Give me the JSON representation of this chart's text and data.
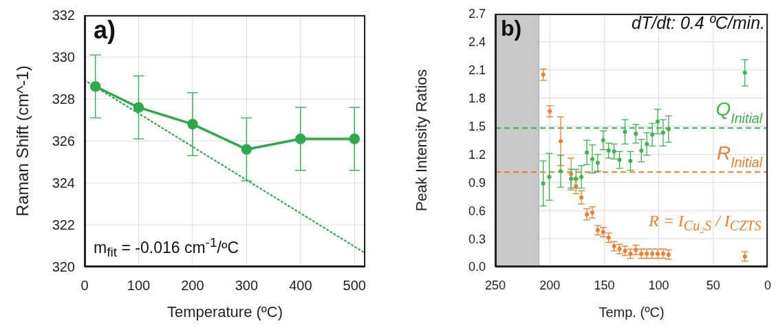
{
  "chart_data": [
    {
      "type": "line",
      "xlabel": "Temperature (ºC)",
      "ylabel": "Raman Shift (cm^-1)",
      "xlim": [
        0,
        520
      ],
      "xticks": [
        0,
        100,
        200,
        300,
        400,
        500
      ],
      "ylim": [
        320,
        332
      ],
      "yticks": [
        320,
        322,
        324,
        326,
        328,
        330,
        332
      ],
      "grid": true,
      "marker": "circle",
      "annotations": [
        "a)",
        "m$_{fit}$ = -0.016 cm$^{-1}$/ºC"
      ],
      "series": [
        {
          "color": "#2ea84a",
          "x": [
            20,
            100,
            200,
            300,
            400,
            500
          ],
          "values": [
            328.6,
            327.6,
            326.8,
            325.6,
            326.1,
            326.1
          ],
          "errors": [
            1.5,
            1.5,
            1.5,
            1.5,
            1.5,
            1.5
          ]
        },
        {
          "type": "line",
          "color": "#2ea84a",
          "x": [
            0,
            520
          ],
          "values": [
            328.9,
            320.65
          ],
          "marker": "none",
          "line_style": "dotted"
        }
      ]
    },
    {
      "type": "scatter",
      "xlabel": "Temp. (ºC)",
      "ylabel": "Peak Intensity Ratios",
      "xlim": [
        250,
        0
      ],
      "xticks": [
        250,
        200,
        150,
        100,
        50,
        0
      ],
      "ylim": [
        0,
        2.7
      ],
      "yticks": [
        {
          "value": 0,
          "label": "0.0"
        },
        0.3,
        0.6,
        0.9,
        1.2,
        1.5,
        1.8,
        2.1,
        2.4,
        2.7
      ],
      "grid": true,
      "marker": "circle",
      "ref_lines": [
        {
          "axis": "y",
          "value": 1.48,
          "label": "Q$_{Initial}$",
          "color": "#3cb44b",
          "line_style": "dashed"
        },
        {
          "axis": "y",
          "value": 1.01,
          "label": "R$_{Initial}$",
          "color": "#ed7d31",
          "line_style": "dashed"
        }
      ],
      "bands": [
        {
          "axis": "x",
          "from": 250,
          "to": 210,
          "color": "#c9c9c9"
        }
      ],
      "annotations": [
        "b)",
        "dT/dt: 0.4 ºC/min.",
        "R = I$_{Cu₂S}$ / I$_{CZTS}$"
      ],
      "series": [
        {
          "color": "#ed7d31",
          "x": [
            206,
            200,
            190,
            180.5,
            176,
            171,
            166,
            161,
            156,
            151,
            146,
            141,
            136,
            131,
            126,
            121,
            116,
            111,
            106,
            101,
            96,
            91,
            21
          ],
          "values": [
            2.05,
            1.66,
            1.34,
            0.99,
            0.86,
            0.74,
            0.56,
            0.58,
            0.39,
            0.37,
            0.31,
            0.22,
            0.19,
            0.17,
            0.14,
            0.18,
            0.14,
            0.14,
            0.14,
            0.14,
            0.14,
            0.13,
            0.11
          ],
          "errors": [
            0.06,
            0.06,
            0.26,
            0.17,
            0.08,
            0.07,
            0.06,
            0.06,
            0.05,
            0.05,
            0.05,
            0.05,
            0.05,
            0.05,
            0.05,
            0.05,
            0.05,
            0.05,
            0.05,
            0.05,
            0.05,
            0.05,
            0.05
          ]
        },
        {
          "color": "#3cb44b",
          "x": [
            206,
            200.5,
            190,
            180.5,
            176,
            171,
            166,
            161,
            156,
            151,
            146,
            141,
            136,
            131,
            126,
            121,
            116,
            111,
            106,
            101,
            96,
            91,
            21
          ],
          "values": [
            0.89,
            0.96,
            1.02,
            0.94,
            0.94,
            0.96,
            1.22,
            1.15,
            1.11,
            1.35,
            1.24,
            1.23,
            1.14,
            1.44,
            1.13,
            1.42,
            1.24,
            1.31,
            1.41,
            1.55,
            1.43,
            1.47,
            2.07
          ],
          "errors": [
            0.24,
            0.25,
            0.17,
            0.1,
            0.1,
            0.12,
            0.13,
            0.15,
            0.09,
            0.1,
            0.08,
            0.08,
            0.09,
            0.13,
            0.1,
            0.1,
            0.12,
            0.12,
            0.12,
            0.13,
            0.14,
            0.14,
            0.14
          ]
        }
      ]
    }
  ]
}
